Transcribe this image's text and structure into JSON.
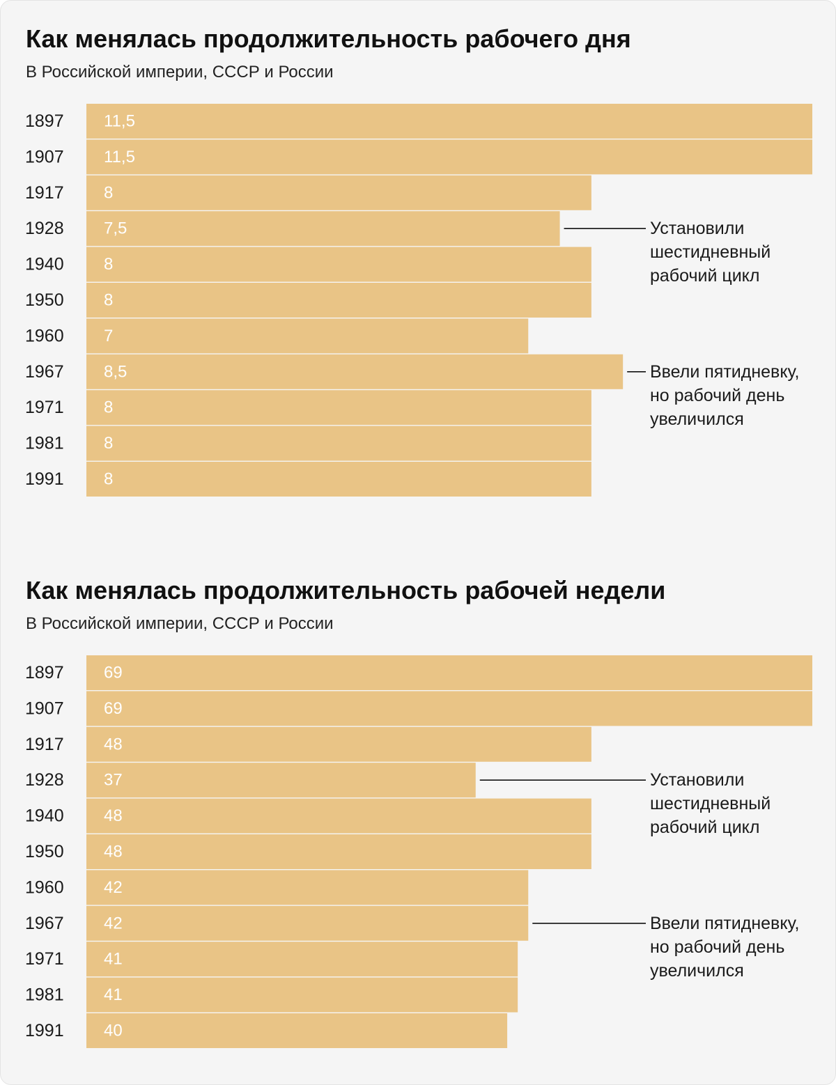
{
  "chart_data": [
    {
      "type": "bar",
      "orientation": "horizontal",
      "title": "Как менялась продолжительность рабочего дня",
      "subtitle": "В Российской империи, СССР и России",
      "categories": [
        "1897",
        "1907",
        "1917",
        "1928",
        "1940",
        "1950",
        "1960",
        "1967",
        "1971",
        "1981",
        "1991"
      ],
      "values": [
        11.5,
        11.5,
        8,
        7.5,
        8,
        8,
        7,
        8.5,
        8,
        8,
        8
      ],
      "value_labels": [
        "11,5",
        "11,5",
        "8",
        "7,5",
        "8",
        "8",
        "7",
        "8,5",
        "8",
        "8",
        "8"
      ],
      "xlim": [
        0,
        11.5
      ],
      "bar_color": "#e9c486",
      "annotations": [
        {
          "category": "1928",
          "text": "Установили шестидневный рабочий цикл",
          "lines": [
            "Установили",
            "шестидневный",
            "рабочий цикл"
          ]
        },
        {
          "category": "1967",
          "text": "Ввели пятидневку, но рабочий день увеличился",
          "lines": [
            "Ввели пятидневку,",
            "но рабочий день",
            "увеличился"
          ]
        }
      ]
    },
    {
      "type": "bar",
      "orientation": "horizontal",
      "title": "Как менялась продолжительность рабочей недели",
      "subtitle": "В Российской империи, СССР и России",
      "categories": [
        "1897",
        "1907",
        "1917",
        "1928",
        "1940",
        "1950",
        "1960",
        "1967",
        "1971",
        "1981",
        "1991"
      ],
      "values": [
        69,
        69,
        48,
        37,
        48,
        48,
        42,
        42,
        41,
        41,
        40
      ],
      "value_labels": [
        "69",
        "69",
        "48",
        "37",
        "48",
        "48",
        "42",
        "42",
        "41",
        "41",
        "40"
      ],
      "xlim": [
        0,
        69
      ],
      "bar_color": "#e9c486",
      "annotations": [
        {
          "category": "1928",
          "text": "Установили шестидневный рабочий цикл",
          "lines": [
            "Установили",
            "шестидневный",
            "рабочий цикл"
          ]
        },
        {
          "category": "1967",
          "text": "Ввели пятидневку, но рабочий день увеличился",
          "lines": [
            "Ввели пятидневку,",
            "но рабочий день",
            "увеличился"
          ]
        }
      ]
    }
  ]
}
